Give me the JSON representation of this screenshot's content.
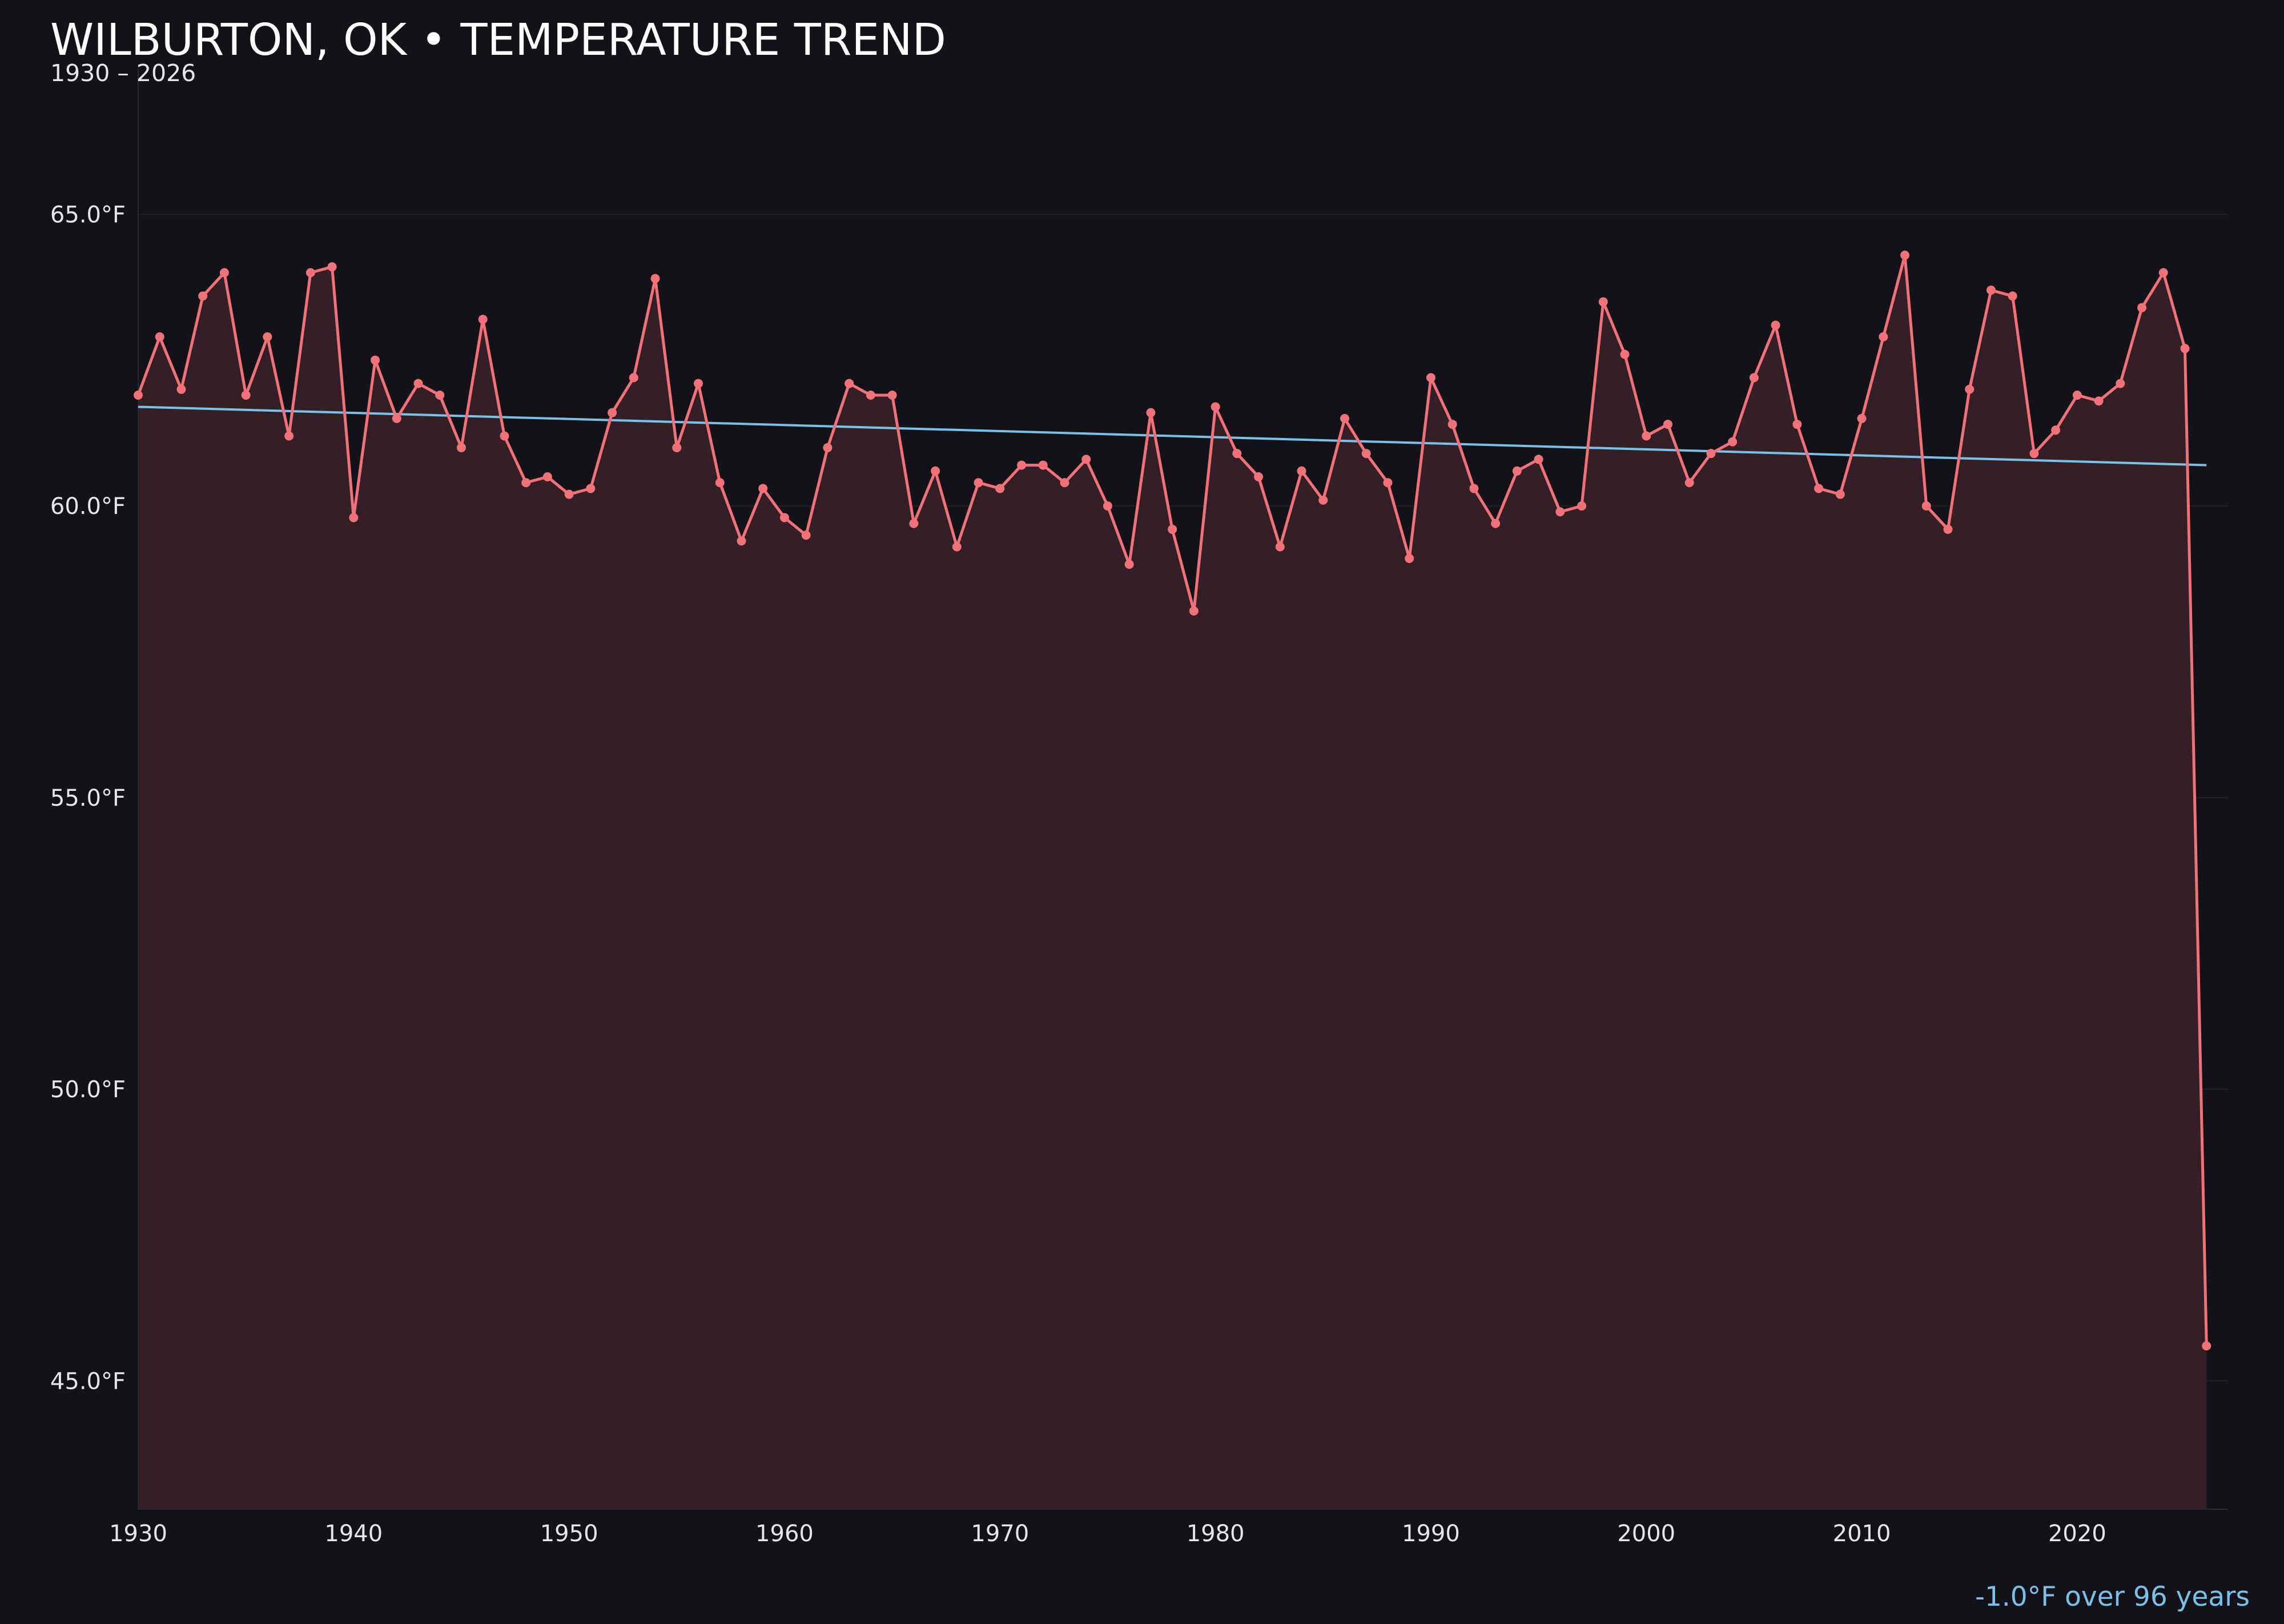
{
  "chart_data": {
    "type": "line",
    "title": "WILBURTON, OK • TEMPERATURE TREND",
    "subtitle": "1930 – 2026",
    "xlabel": "",
    "ylabel": "",
    "xlim": [
      1930,
      2027
    ],
    "ylim": [
      42.8,
      67.5
    ],
    "x_ticks": [
      1930,
      1940,
      1950,
      1960,
      1970,
      1980,
      1990,
      2000,
      2010,
      2020
    ],
    "y_ticks": [
      45,
      50,
      55,
      60,
      65
    ],
    "y_tick_labels": [
      "45.0°F",
      "50.0°F",
      "55.0°F",
      "60.0°F",
      "65.0°F"
    ],
    "grid": "horizontal",
    "colors": {
      "background": "#131219",
      "series": "#f07178",
      "area": "#351f26",
      "trend": "#79c1ea",
      "grid": "#231f27",
      "text": "#e6e6e6"
    },
    "series": [
      {
        "x": [
          1930,
          1931,
          1932,
          1933,
          1934,
          1935,
          1936,
          1937,
          1938,
          1939,
          1940,
          1941,
          1942,
          1943,
          1944,
          1945,
          1946,
          1947,
          1948,
          1949,
          1950,
          1951,
          1952,
          1953,
          1954,
          1955,
          1956,
          1957,
          1958,
          1959,
          1960,
          1961,
          1962,
          1963,
          1964,
          1965,
          1966,
          1967,
          1968,
          1969,
          1970,
          1971,
          1972,
          1973,
          1974,
          1975,
          1976,
          1977,
          1978,
          1979,
          1980,
          1981,
          1982,
          1983,
          1984,
          1985,
          1986,
          1987,
          1988,
          1989,
          1990,
          1991,
          1992,
          1993,
          1994,
          1995,
          1996,
          1997,
          1998,
          1999,
          2000,
          2001,
          2002,
          2003,
          2004,
          2005,
          2006,
          2007,
          2008,
          2009,
          2010,
          2011,
          2012,
          2013,
          2014,
          2015,
          2016,
          2017,
          2018,
          2019,
          2020,
          2021,
          2022,
          2023,
          2024,
          2025,
          2026
        ],
        "values": [
          61.9,
          62.9,
          62.0,
          63.6,
          64.0,
          61.9,
          62.9,
          61.2,
          64.0,
          64.1,
          59.8,
          62.5,
          61.5,
          62.1,
          61.9,
          61.0,
          63.2,
          61.2,
          60.4,
          60.5,
          60.2,
          60.3,
          61.6,
          62.2,
          63.9,
          61.0,
          62.1,
          60.4,
          59.4,
          60.3,
          59.8,
          59.5,
          61.0,
          62.1,
          61.9,
          61.9,
          59.7,
          60.6,
          59.3,
          60.4,
          60.3,
          60.7,
          60.7,
          60.4,
          60.8,
          60.0,
          59.0,
          61.6,
          59.6,
          58.2,
          61.7,
          60.9,
          60.5,
          59.3,
          60.6,
          60.1,
          61.5,
          60.9,
          60.4,
          59.1,
          62.2,
          61.4,
          60.3,
          59.7,
          60.6,
          60.8,
          59.9,
          60.0,
          63.5,
          62.6,
          61.2,
          61.4,
          60.4,
          60.9,
          61.1,
          62.2,
          63.1,
          61.4,
          60.3,
          60.2,
          61.5,
          62.9,
          64.3,
          60.0,
          59.6,
          62.0,
          63.7,
          63.6,
          60.9,
          61.3,
          61.9,
          61.8,
          62.1,
          63.4,
          64.0,
          62.7,
          45.6
        ]
      }
    ],
    "trend": {
      "x": [
        1930,
        2026
      ],
      "values": [
        61.7,
        60.7
      ]
    },
    "annotation": "-1.0°F over 96 years"
  }
}
